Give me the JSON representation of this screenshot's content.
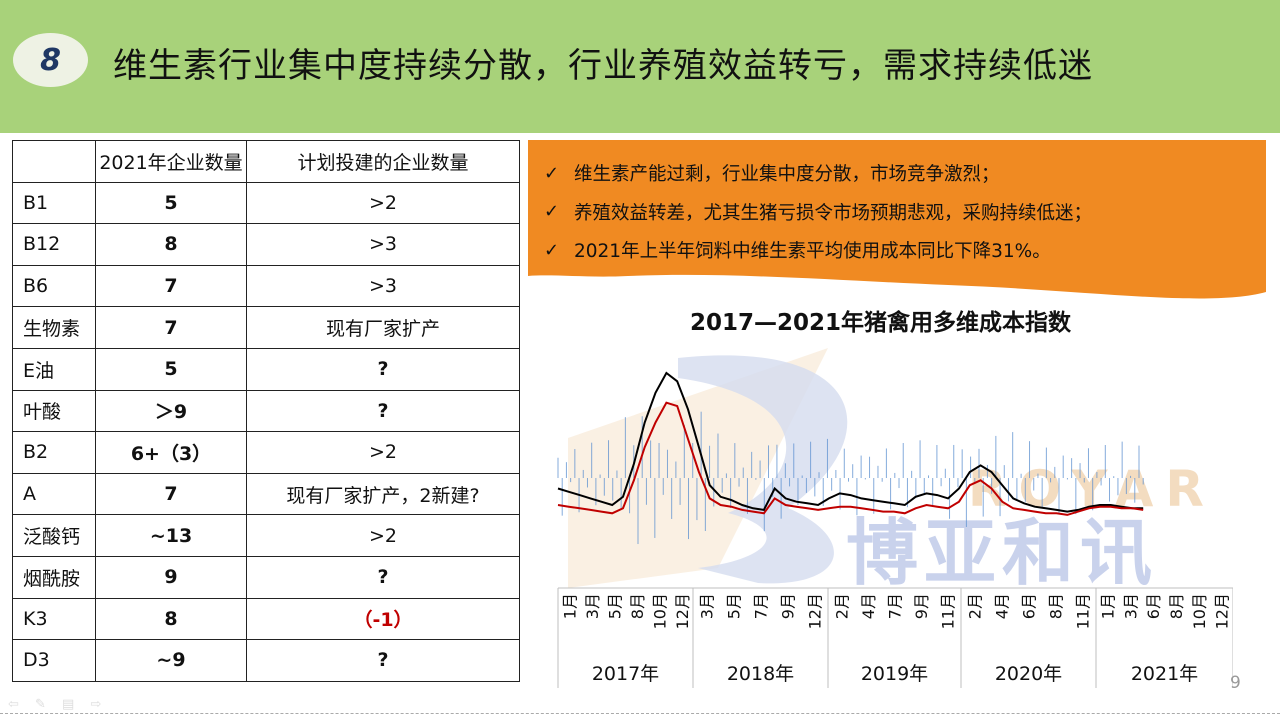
{
  "header": {
    "number": "8",
    "title": "维生素行业集中度持续分散，行业养殖效益转亏，需求持续低迷"
  },
  "table": {
    "headers": [
      "",
      "2021年企业数量",
      "计划投建的企业数量"
    ],
    "rows": [
      [
        "B1",
        "5",
        ">2"
      ],
      [
        "B12",
        "8",
        ">3"
      ],
      [
        "B6",
        "7",
        ">3"
      ],
      [
        "生物素",
        "7",
        "现有厂家扩产"
      ],
      [
        "E油",
        "5",
        "?"
      ],
      [
        "叶酸",
        "＞9",
        "?"
      ],
      [
        "B2",
        "6+（3）",
        ">2"
      ],
      [
        "A",
        "7",
        "现有厂家扩产，2新建?"
      ],
      [
        "泛酸钙",
        "~13",
        ">2"
      ],
      [
        "烟酰胺",
        "9",
        "?"
      ],
      [
        "K3",
        "8",
        "（-1）"
      ],
      [
        "D3",
        "~9",
        "?"
      ]
    ]
  },
  "bullets": [
    "维生素产能过剩，行业集中度分散，市场竞争激烈；",
    "养殖效益转差，尤其生猪亏损令市场预期悲观，采购持续低迷；",
    "2021年上半年饲料中维生素平均使用成本同比下降31%。"
  ],
  "check_icon": "check-icon",
  "watermark": {
    "brand": "ROYAR",
    "cn": "博亚和讯"
  },
  "chart_data": {
    "type": "line",
    "title": "2017—2021年猪禽用多维成本指数",
    "years": [
      "2017年",
      "2018年",
      "2019年",
      "2020年",
      "2021年"
    ],
    "month_labels": [
      [
        "1月",
        "3月",
        "5月",
        "8月",
        "10月",
        "12月"
      ],
      [
        "3月",
        "5月",
        "7月",
        "9月",
        "12月"
      ],
      [
        "2月",
        "4月",
        "7月",
        "9月",
        "11月"
      ],
      [
        "2月",
        "4月",
        "6月",
        "8月",
        "11月"
      ],
      [
        "1月",
        "3月",
        "6月",
        "8月",
        "10月",
        "12月"
      ]
    ],
    "x": [
      0,
      1,
      2,
      3,
      4,
      5,
      6,
      7,
      8,
      9,
      10,
      11,
      12,
      13,
      14,
      15,
      16,
      17,
      18,
      19,
      20,
      21,
      22,
      23,
      24,
      25,
      26,
      27,
      28,
      29,
      30,
      31,
      32,
      33,
      34,
      35,
      36,
      37,
      38,
      39,
      40,
      41,
      42,
      43,
      44,
      45,
      46,
      47,
      48,
      49,
      50,
      51,
      52,
      53,
      54
    ],
    "series": [
      {
        "color": "#000000",
        "values": [
          0.3,
          0.28,
          0.26,
          0.24,
          0.22,
          0.2,
          0.25,
          0.45,
          0.7,
          0.88,
          1.0,
          0.95,
          0.78,
          0.55,
          0.32,
          0.25,
          0.23,
          0.2,
          0.18,
          0.17,
          0.3,
          0.24,
          0.22,
          0.21,
          0.2,
          0.24,
          0.27,
          0.26,
          0.24,
          0.23,
          0.22,
          0.21,
          0.2,
          0.25,
          0.27,
          0.26,
          0.24,
          0.3,
          0.4,
          0.44,
          0.4,
          0.32,
          0.24,
          0.21,
          0.19,
          0.18,
          0.17,
          0.16,
          0.17,
          0.19,
          0.2,
          0.2,
          0.19,
          0.18,
          0.18
        ]
      },
      {
        "color": "#c00000",
        "values": [
          0.2,
          0.19,
          0.18,
          0.17,
          0.16,
          0.15,
          0.18,
          0.35,
          0.55,
          0.7,
          0.82,
          0.8,
          0.6,
          0.4,
          0.24,
          0.2,
          0.19,
          0.17,
          0.16,
          0.15,
          0.24,
          0.2,
          0.19,
          0.18,
          0.17,
          0.18,
          0.19,
          0.19,
          0.18,
          0.17,
          0.16,
          0.16,
          0.15,
          0.18,
          0.2,
          0.19,
          0.18,
          0.22,
          0.32,
          0.35,
          0.3,
          0.22,
          0.18,
          0.17,
          0.16,
          0.15,
          0.15,
          0.14,
          0.16,
          0.18,
          0.19,
          0.19,
          0.18,
          0.18,
          0.17
        ]
      }
    ]
  }
}
